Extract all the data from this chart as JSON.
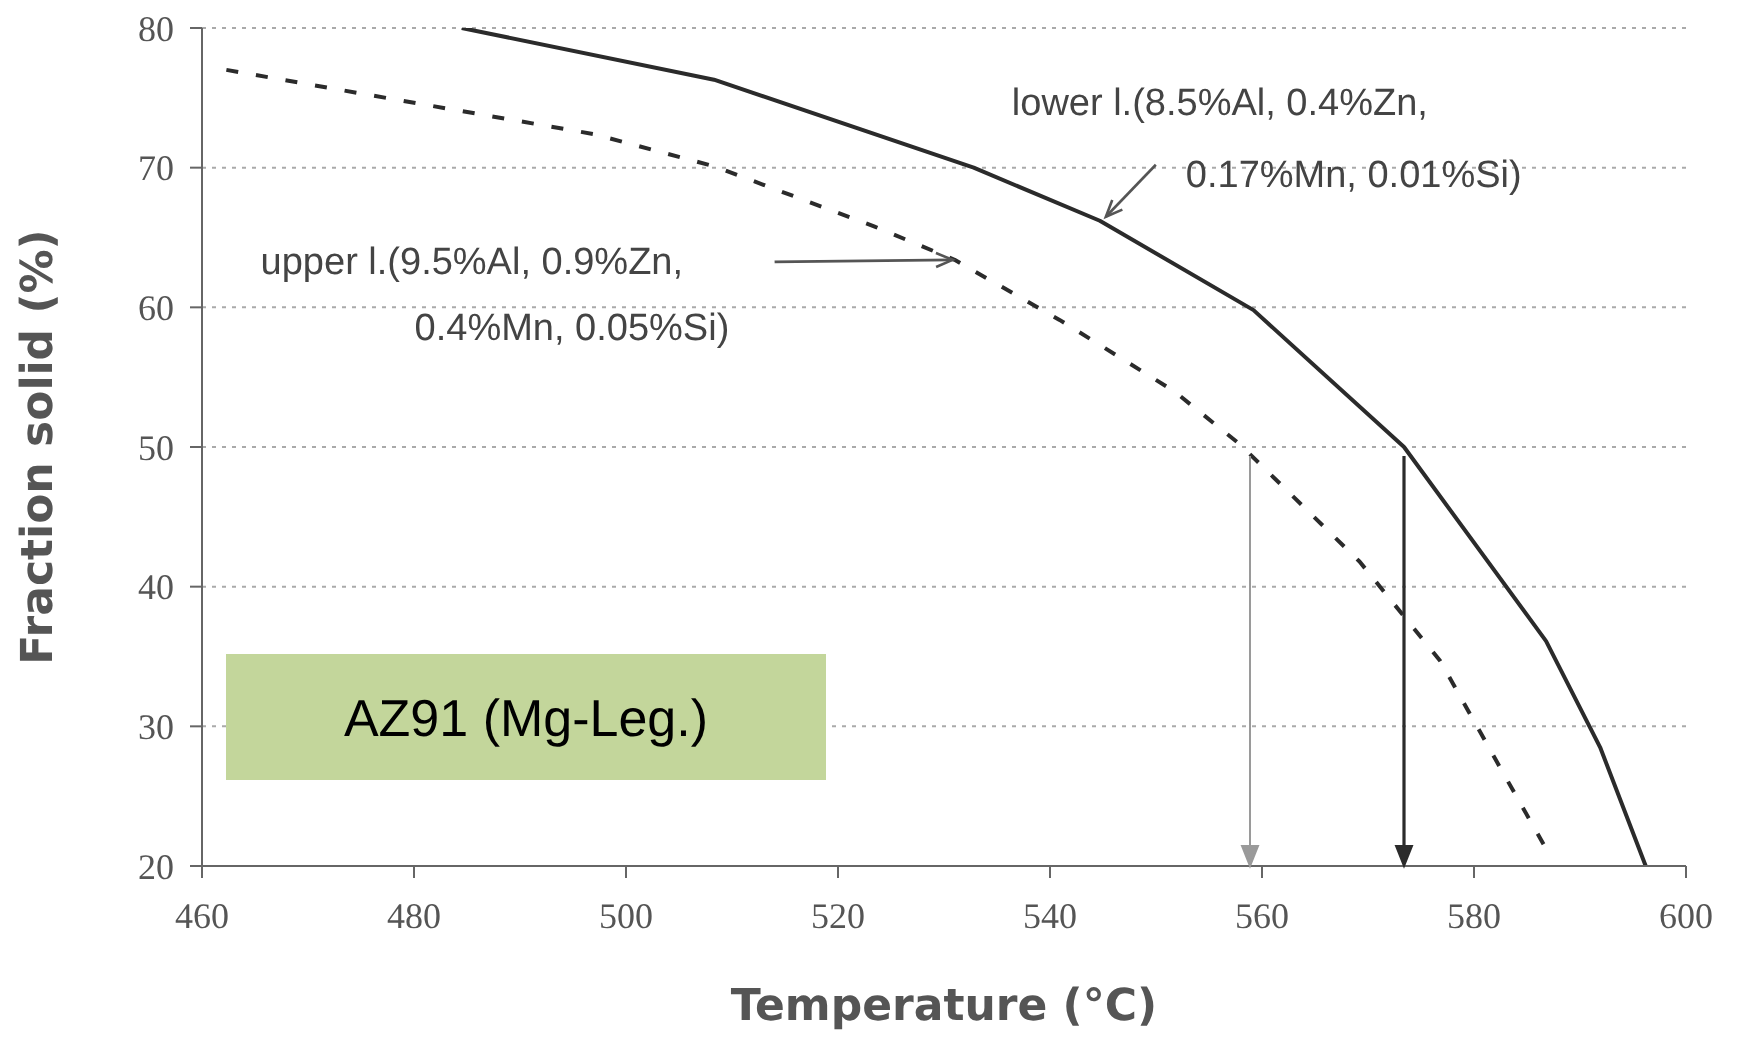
{
  "chart_data": {
    "type": "line",
    "xlabel": "Temperature (°C)",
    "ylabel": "Fraction solid (%)",
    "xlim": [
      460,
      600
    ],
    "xticks": [
      460,
      480,
      500,
      520,
      540,
      560,
      580,
      600
    ],
    "ylim": [
      20,
      80
    ],
    "yticks": [
      20,
      30,
      40,
      50,
      60,
      70,
      80
    ],
    "grid": "y",
    "series": [
      {
        "color": "#2b2b2b",
        "line_style": "solid",
        "x": [
          484.5,
          508.3,
          532.8,
          544.7,
          559.2,
          573.4,
          586.8,
          591.9,
          596.2
        ],
        "values": [
          80,
          76.3,
          70,
          66.2,
          59.8,
          50,
          36.1,
          28.5,
          20
        ]
      },
      {
        "color": "#2b2b2b",
        "line_style": "dashed",
        "x": [
          462.3,
          481.1,
          497,
          508.3,
          523.4,
          531,
          540.9,
          551.7,
          557.9,
          569.2,
          576.8,
          582.5,
          586.6
        ],
        "values": [
          77,
          74.5,
          72.4,
          70.1,
          65.8,
          63.4,
          59.1,
          54,
          50.2,
          41.8,
          34.7,
          27,
          21.5
        ]
      }
    ],
    "annotations": [
      {
        "text": "lower l.(8.5%Al, 0.4%Zn,\n0.17%Mn, 0.01%Si)",
        "x": 544.7,
        "y": 66.2
      },
      {
        "text": "upper l.(9.5%Al, 0.9%Zn,\n0.4%Mn, 0.05%Si)",
        "x": 531,
        "y": 63.4
      },
      "AZ91 (Mg-Leg.)"
    ]
  }
}
